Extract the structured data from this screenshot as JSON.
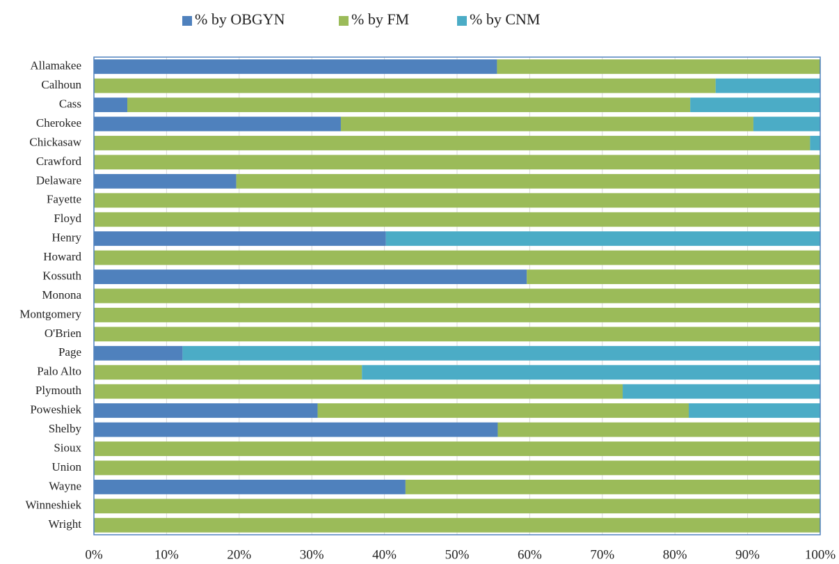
{
  "chart_data": {
    "type": "stacked_barh",
    "categories": [
      "Allamakee",
      "Calhoun",
      "Cass",
      "Cherokee",
      "Chickasaw",
      "Crawford",
      "Delaware",
      "Fayette",
      "Floyd",
      "Henry",
      "Howard",
      "Kossuth",
      "Monona",
      "Montgomery",
      "O'Brien",
      "Page",
      "Palo Alto",
      "Plymouth",
      "Poweshiek",
      "Shelby",
      "Sioux",
      "Union",
      "Wayne",
      "Winneshiek",
      "Wright"
    ],
    "series": [
      {
        "name": "% by OBGYN",
        "color": "#4f81bd",
        "values": [
          55.5,
          0,
          4.6,
          34.0,
          0,
          0,
          19.6,
          0,
          0,
          40.2,
          0,
          59.6,
          0,
          0,
          0,
          12.2,
          0,
          0,
          30.8,
          55.6,
          0,
          0,
          42.9,
          0,
          0
        ]
      },
      {
        "name": "% by FM",
        "color": "#9bbb59",
        "values": [
          44.5,
          85.6,
          77.5,
          56.8,
          98.6,
          100,
          80.4,
          100,
          100,
          0,
          100,
          40.4,
          100,
          100,
          100,
          0,
          36.9,
          72.8,
          51.1,
          44.4,
          100,
          100,
          57.1,
          100,
          100
        ]
      },
      {
        "name": "% by CNM",
        "color": "#4bacc6",
        "values": [
          0,
          14.4,
          17.9,
          9.2,
          1.4,
          0,
          0,
          0,
          0,
          59.8,
          0,
          0,
          0,
          0,
          0,
          87.8,
          63.1,
          27.2,
          18.1,
          0,
          0,
          0,
          0,
          0,
          0
        ]
      }
    ],
    "xlim": [
      0,
      100
    ],
    "xticks": [
      {
        "value": 0,
        "label": "0%"
      },
      {
        "value": 10,
        "label": "10%"
      },
      {
        "value": 20,
        "label": "20%"
      },
      {
        "value": 30,
        "label": "30%"
      },
      {
        "value": 40,
        "label": "40%"
      },
      {
        "value": 50,
        "label": "50%"
      },
      {
        "value": 60,
        "label": "60%"
      },
      {
        "value": 70,
        "label": "70%"
      },
      {
        "value": 80,
        "label": "80%"
      },
      {
        "value": 90,
        "label": "90%"
      },
      {
        "value": 100,
        "label": "100%"
      }
    ],
    "grid": true,
    "legend": "top"
  }
}
